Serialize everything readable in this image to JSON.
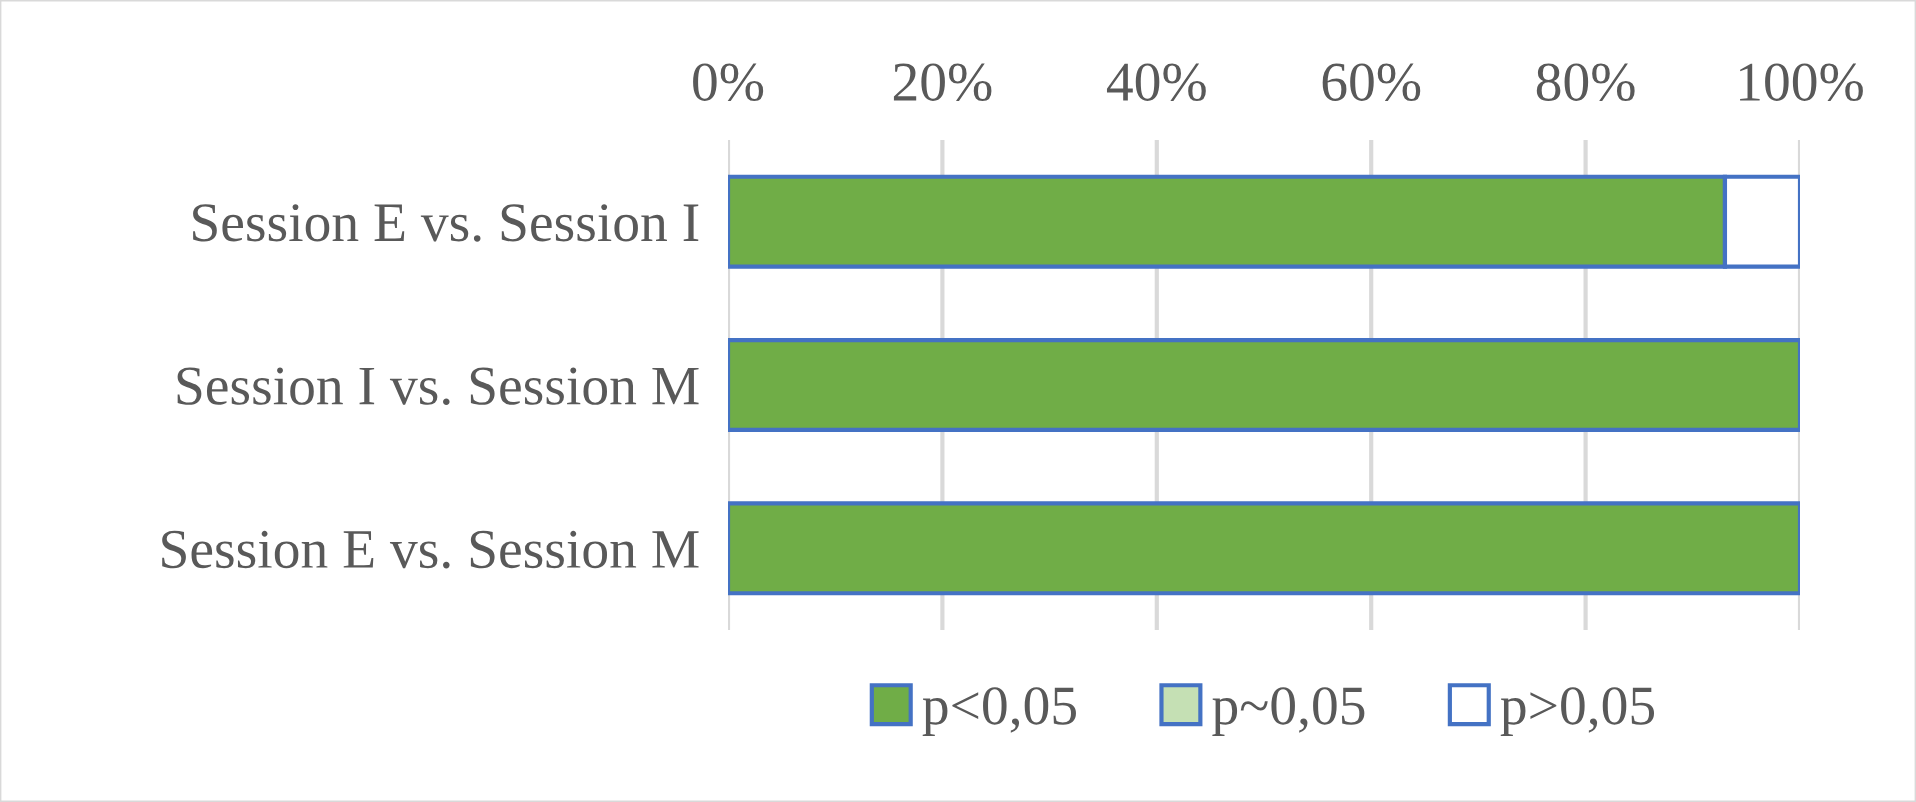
{
  "chart_data": {
    "type": "bar",
    "orientation": "horizontal",
    "stacked": true,
    "categories": [
      "Session E vs. Session I",
      "Session I vs. Session M",
      "Session E vs. Session M"
    ],
    "series": [
      {
        "name": "p<0,05",
        "color": "#70ad47",
        "values": [
          93,
          100,
          100
        ]
      },
      {
        "name": "p~0,05",
        "color": "#c5e0b4",
        "values": [
          0,
          0,
          0
        ]
      },
      {
        "name": "p>0,05",
        "color": "#ffffff",
        "values": [
          7,
          0,
          0
        ]
      }
    ],
    "xlim": [
      0,
      100
    ],
    "xticks": [
      {
        "value": 0,
        "label": "0%"
      },
      {
        "value": 20,
        "label": "20%"
      },
      {
        "value": 40,
        "label": "40%"
      },
      {
        "value": 60,
        "label": "60%"
      },
      {
        "value": 80,
        "label": "80%"
      },
      {
        "value": 100,
        "label": "100%"
      }
    ],
    "grid": "x",
    "legend": "bottom"
  }
}
